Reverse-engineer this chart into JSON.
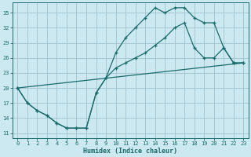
{
  "xlabel": "Humidex (Indice chaleur)",
  "background_color": "#cce8f0",
  "grid_color": "#a0c4d0",
  "line_color": "#1a6b6b",
  "xlim": [
    -0.5,
    23.5
  ],
  "ylim": [
    10.0,
    37.0
  ],
  "xticks": [
    0,
    1,
    2,
    3,
    4,
    5,
    6,
    7,
    8,
    9,
    10,
    11,
    12,
    13,
    14,
    15,
    16,
    17,
    18,
    19,
    20,
    21,
    22,
    23
  ],
  "yticks": [
    11,
    14,
    17,
    20,
    23,
    26,
    29,
    32,
    35
  ],
  "curve1_x": [
    0,
    1,
    2,
    3,
    4,
    5,
    6,
    7,
    8,
    9,
    10,
    11,
    12,
    13,
    14,
    15,
    16,
    17,
    18,
    19,
    20,
    21,
    22,
    23
  ],
  "curve1_y": [
    20,
    17,
    15.5,
    14.5,
    13,
    12,
    12,
    12,
    19,
    22,
    27,
    30,
    32,
    34,
    36,
    35,
    36,
    36,
    34,
    33,
    33,
    28,
    25,
    25
  ],
  "curve2_x": [
    0,
    1,
    2,
    3,
    4,
    5,
    6,
    7,
    8,
    9,
    10,
    11,
    12,
    13,
    14,
    15,
    16,
    17,
    18,
    19,
    20,
    21,
    22,
    23
  ],
  "curve2_y": [
    20,
    17,
    15.5,
    14.5,
    13,
    12,
    12,
    12,
    19,
    22,
    24,
    25,
    26,
    27,
    28.5,
    30,
    32,
    33,
    28,
    26,
    26,
    28,
    25,
    25
  ],
  "line3_x": [
    0,
    23
  ],
  "line3_y": [
    20,
    25
  ],
  "xlabel_fontsize": 6,
  "tick_fontsize": 5
}
